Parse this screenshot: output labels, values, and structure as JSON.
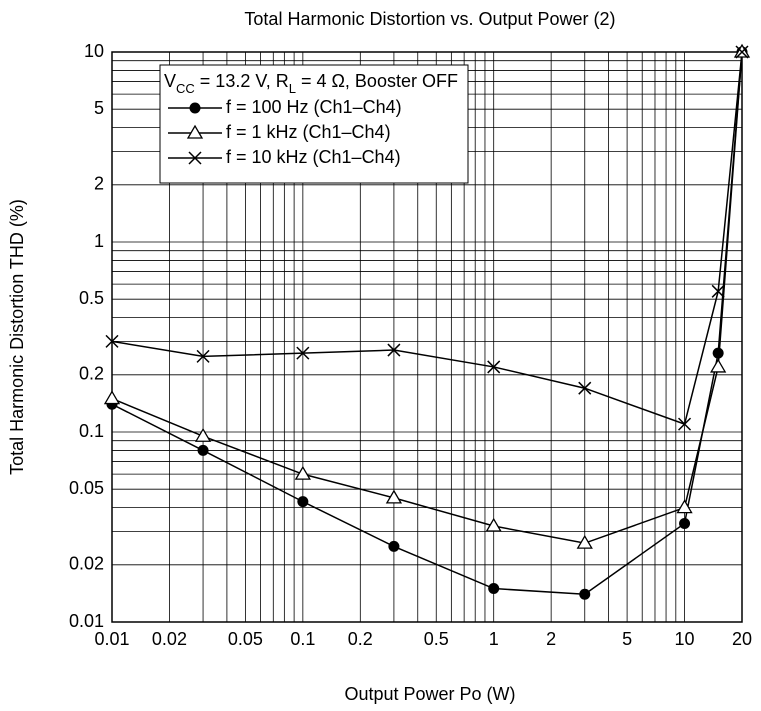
{
  "chart_data": {
    "type": "line",
    "title": "Total Harmonic Distortion vs. Output Power (2)",
    "x_label": "Output Power  Po  (W)",
    "y_label": "Total Harmonic Distortion  THD  (%)",
    "legend_title": [
      {
        "text": "V"
      },
      {
        "text": "CC",
        "sub": true
      },
      {
        "text": " = 13.2 V, R"
      },
      {
        "text": "L",
        "sub": true
      },
      {
        "text": " = 4 Ω, Booster OFF"
      }
    ],
    "x": [
      0.01,
      0.03,
      0.1,
      0.3,
      1,
      3,
      10,
      15,
      20
    ],
    "series": [
      {
        "name": "f = 100 Hz (Ch1–Ch4)",
        "color": "#000000",
        "marker": "circle",
        "values": [
          0.14,
          0.08,
          0.043,
          0.025,
          0.015,
          0.014,
          0.033,
          0.26,
          10
        ]
      },
      {
        "name": "f = 1 kHz (Ch1–Ch4)",
        "color": "#000000",
        "marker": "triangle",
        "values": [
          0.15,
          0.095,
          0.06,
          0.045,
          0.032,
          0.026,
          0.04,
          0.22,
          10
        ]
      },
      {
        "name": "f = 10 kHz (Ch1–Ch4)",
        "color": "#000000",
        "marker": "cross",
        "values": [
          0.3,
          0.25,
          0.26,
          0.27,
          0.22,
          0.17,
          0.11,
          0.55,
          10
        ]
      }
    ],
    "x_log": true,
    "y_log": true,
    "xlim": [
      0.01,
      20
    ],
    "ylim": [
      0.01,
      10
    ],
    "xticks": [
      0.01,
      0.02,
      0.05,
      0.1,
      0.2,
      0.5,
      1,
      2,
      5,
      10,
      20
    ],
    "yticks": [
      0.01,
      0.02,
      0.05,
      0.1,
      0.2,
      0.5,
      1,
      2,
      5,
      10
    ],
    "x_minor_grid": [
      0.03,
      0.04,
      0.06,
      0.07,
      0.08,
      0.09,
      0.3,
      0.4,
      0.6,
      0.7,
      0.8,
      0.9,
      3,
      4,
      6,
      7,
      8,
      9
    ],
    "y_minor_grid": [
      0.03,
      0.04,
      0.06,
      0.07,
      0.08,
      0.09,
      0.3,
      0.4,
      0.6,
      0.7,
      0.8,
      0.9,
      3,
      4,
      6,
      7,
      8,
      9
    ],
    "grid": true
  }
}
